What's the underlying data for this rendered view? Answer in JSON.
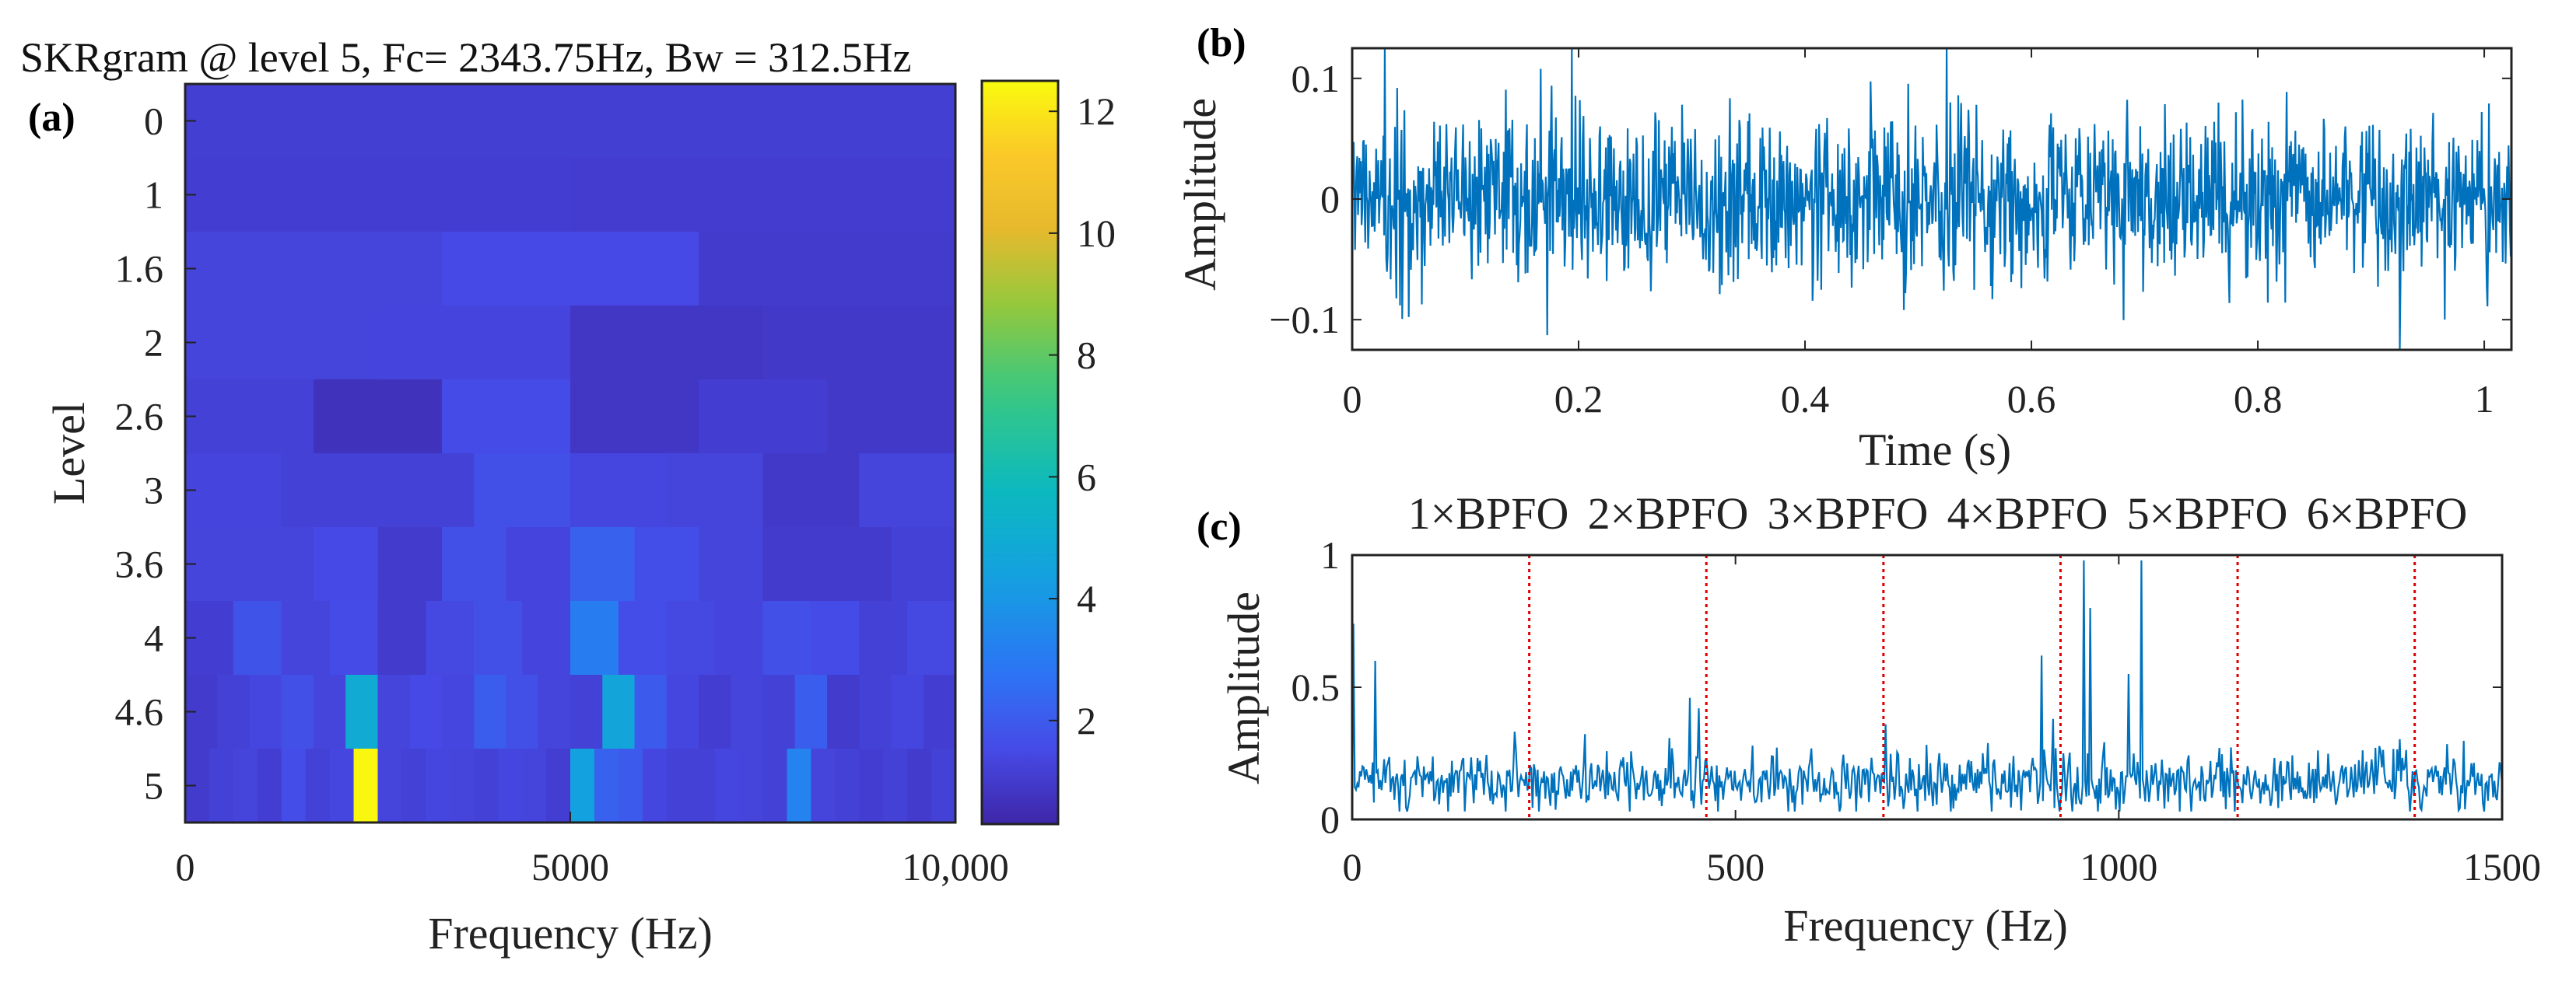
{
  "chart_data": [
    {
      "panel": "(a)",
      "type": "heatmap",
      "title": "SKRgram @ level 5, Fc= 2343.75Hz, Bw = 312.5Hz",
      "xlabel": "Frequency (Hz)",
      "ylabel": "Level",
      "xlim": [
        0,
        10000
      ],
      "xticks": [
        0,
        5000,
        10000
      ],
      "xtick_labels": [
        "0",
        "5000",
        "10,000"
      ],
      "levels": [
        "0",
        "1",
        "1.6",
        "2",
        "2.6",
        "3",
        "3.6",
        "4",
        "4.6",
        "5"
      ],
      "colorbar": {
        "ticks": [
          2,
          4,
          6,
          8,
          10,
          12
        ],
        "tick_labels": [
          "2",
          "4",
          "6",
          "8",
          "10",
          "12"
        ],
        "range": [
          0.3,
          12.5
        ]
      },
      "rows": [
        {
          "level": "0",
          "bands": 1,
          "values": [
            1.15
          ]
        },
        {
          "level": "1",
          "bands": 2,
          "values": [
            1.1,
            1.05
          ]
        },
        {
          "level": "1.6",
          "bands": 3,
          "values": [
            1.3,
            1.5,
            1.0
          ]
        },
        {
          "level": "2",
          "bands": 4,
          "values": [
            1.3,
            1.35,
            0.85,
            0.95
          ]
        },
        {
          "level": "2.6",
          "bands": 6,
          "values": [
            1.2,
            0.7,
            1.55,
            0.85,
            1.1,
            0.95
          ]
        },
        {
          "level": "3",
          "bands": 8,
          "values": [
            1.35,
            1.2,
            1.2,
            1.7,
            1.4,
            1.3,
            0.95,
            1.3
          ]
        },
        {
          "level": "3.6",
          "bands": 12,
          "values": [
            1.3,
            1.3,
            1.5,
            1.0,
            1.7,
            1.35,
            2.2,
            1.65,
            1.3,
            1.0,
            1.0,
            1.2
          ]
        },
        {
          "level": "4",
          "bands": 16,
          "values": [
            1.1,
            1.8,
            1.3,
            1.55,
            1.0,
            1.45,
            1.7,
            1.35,
            3.1,
            1.6,
            1.45,
            1.35,
            1.7,
            1.55,
            1.2,
            1.45
          ]
        },
        {
          "level": "4.6",
          "bands": 24,
          "values": [
            1.0,
            1.2,
            1.4,
            1.7,
            1.3,
            4.9,
            1.3,
            1.5,
            1.4,
            2.1,
            1.7,
            1.3,
            1.2,
            4.6,
            2.0,
            1.4,
            1.1,
            1.3,
            1.2,
            2.1,
            1.0,
            1.2,
            1.4,
            1.1
          ]
        },
        {
          "level": "5",
          "bands": 32,
          "values": [
            1.0,
            1.2,
            1.3,
            1.1,
            1.6,
            1.2,
            1.4,
            12.4,
            1.3,
            1.2,
            1.4,
            1.3,
            1.2,
            1.4,
            1.3,
            1.1,
            4.4,
            2.2,
            2.0,
            1.4,
            1.2,
            1.2,
            1.4,
            1.3,
            1.2,
            3.3,
            1.3,
            1.2,
            1.1,
            1.2,
            1.0,
            1.2
          ]
        }
      ]
    },
    {
      "panel": "(b)",
      "type": "line",
      "xlabel": "Time (s)",
      "ylabel": "Amplitude",
      "xlim": [
        0,
        1.024
      ],
      "ylim": [
        -0.125,
        0.125
      ],
      "xticks": [
        0,
        0.2,
        0.4,
        0.6,
        0.8,
        1
      ],
      "xtick_labels": [
        "0",
        "0.2",
        "0.4",
        "0.6",
        "0.8",
        "1"
      ],
      "yticks": [
        -0.1,
        0,
        0.1
      ],
      "ytick_labels": [
        "−0.1",
        "0",
        "0.1"
      ],
      "color": "#0072BD",
      "series": {
        "name": "signal",
        "n_points": 1600,
        "noise_std": 0.035,
        "seed": 7
      }
    },
    {
      "panel": "(c)",
      "type": "line",
      "xlabel": "Frequency (Hz)",
      "ylabel": "Amplitude",
      "xlim": [
        0,
        1500
      ],
      "ylim": [
        0,
        1
      ],
      "xticks": [
        0,
        500,
        1000,
        1500
      ],
      "xtick_labels": [
        "0",
        "500",
        "1000",
        "1500"
      ],
      "yticks": [
        0,
        0.5,
        1
      ],
      "ytick_labels": [
        "0",
        "0.5",
        "1"
      ],
      "color": "#0072BD",
      "series": {
        "name": "envelope spectrum",
        "n_points": 900,
        "base": 0.14,
        "seed": 13
      },
      "peaks": [
        {
          "x": 2,
          "y": 0.74
        },
        {
          "x": 30,
          "y": 0.6
        },
        {
          "x": 440,
          "y": 0.46
        },
        {
          "x": 452,
          "y": 0.42
        },
        {
          "x": 900,
          "y": 0.62
        },
        {
          "x": 915,
          "y": 0.38
        },
        {
          "x": 955,
          "y": 0.98
        },
        {
          "x": 962,
          "y": 0.8
        },
        {
          "x": 1030,
          "y": 0.98
        },
        {
          "x": 1012,
          "y": 0.55
        },
        {
          "x": 695,
          "y": 0.36
        }
      ],
      "harmonic_lines": {
        "color": "#E00000",
        "x": [
          231,
          462,
          693,
          924,
          1155,
          1386
        ],
        "labels": [
          "1×BPFO",
          "2×BPFO",
          "3×BPFO",
          "4×BPFO",
          "5×BPFO",
          "6×BPFO"
        ]
      }
    }
  ]
}
